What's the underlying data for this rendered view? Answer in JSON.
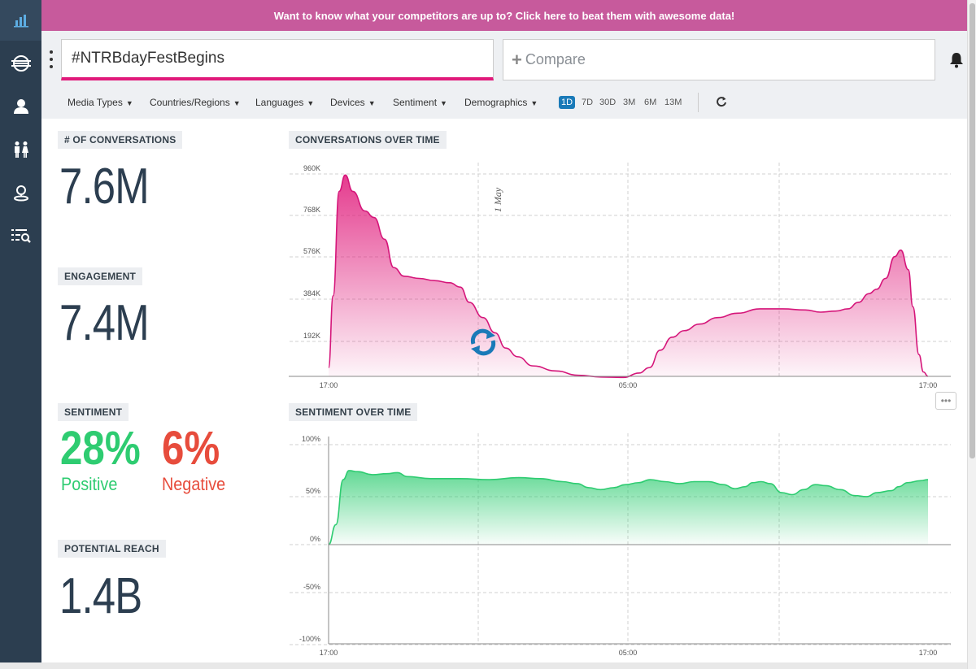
{
  "banner": {
    "text": "Want to know what your competitors are up to? Click here to beat them with awesome data!"
  },
  "sidebar": {
    "items": [
      {
        "icon": "bar-chart-icon",
        "active": true
      },
      {
        "icon": "globe-icon"
      },
      {
        "icon": "user-icon"
      },
      {
        "icon": "demographics-icon"
      },
      {
        "icon": "location-icon"
      },
      {
        "icon": "search-list-icon"
      }
    ]
  },
  "search": {
    "hashtag": "#NTRBdayFestBegins",
    "compare_label": "Compare"
  },
  "filters": {
    "media_types": "Media Types",
    "countries": "Countries/Regions",
    "languages": "Languages",
    "devices": "Devices",
    "sentiment": "Sentiment",
    "demographics": "Demographics"
  },
  "ranges": [
    "1D",
    "7D",
    "30D",
    "3M",
    "6M",
    "13M"
  ],
  "active_range": "1D",
  "metrics": {
    "conversations": {
      "title": "# OF CONVERSATIONS",
      "value": "7.6M"
    },
    "engagement": {
      "title": "ENGAGEMENT",
      "value": "7.4M"
    },
    "sentiment": {
      "title": "SENTIMENT",
      "positive": "28%",
      "positive_label": "Positive",
      "negative": "6%",
      "negative_label": "Negative"
    },
    "reach": {
      "title": "POTENTIAL REACH",
      "value": "1.4B"
    }
  },
  "colors": {
    "brand": "#e0197a",
    "positive": "#2ecc71",
    "negative": "#e74c3c",
    "accent": "#1a7ab8",
    "sidebar": "#2c3e50"
  },
  "chart_data": [
    {
      "type": "area",
      "title": "CONVERSATIONS OVER TIME",
      "x_ticks": [
        "17:00",
        "05:00",
        "17:00"
      ],
      "y_ticks": [
        "192K",
        "384K",
        "576K",
        "768K",
        "960K"
      ],
      "ylim": [
        0,
        960000
      ],
      "annotation": "1 May",
      "grid": true,
      "series": [
        {
          "values": [
            [
              0,
              70000
            ],
            [
              0.3,
              400000
            ],
            [
              0.7,
              880000
            ],
            [
              1.1,
              955000
            ],
            [
              1.6,
              880000
            ],
            [
              2.4,
              790000
            ],
            [
              3,
              760000
            ],
            [
              3.7,
              660000
            ],
            [
              4.3,
              530000
            ],
            [
              5,
              490000
            ],
            [
              6,
              480000
            ],
            [
              7,
              470000
            ],
            [
              8,
              460000
            ],
            [
              8.7,
              440000
            ],
            [
              9.3,
              370000
            ],
            [
              10.2,
              300000
            ],
            [
              11,
              230000
            ],
            [
              11.7,
              160000
            ],
            [
              12.5,
              120000
            ],
            [
              13.5,
              78000
            ],
            [
              15,
              55000
            ],
            [
              16.5,
              35000
            ],
            [
              18,
              27000
            ],
            [
              19.5,
              25000
            ],
            [
              20.5,
              45000
            ],
            [
              21.2,
              70000
            ],
            [
              21.9,
              150000
            ],
            [
              22.7,
              210000
            ],
            [
              23.5,
              240000
            ],
            [
              24.5,
              270000
            ],
            [
              25.7,
              300000
            ],
            [
              27,
              320000
            ],
            [
              28.5,
              340000
            ],
            [
              30,
              340000
            ],
            [
              31.5,
              335000
            ],
            [
              32.5,
              325000
            ],
            [
              33.5,
              330000
            ],
            [
              34.3,
              340000
            ],
            [
              35,
              370000
            ],
            [
              35.7,
              410000
            ],
            [
              36.2,
              430000
            ],
            [
              36.8,
              480000
            ],
            [
              37.4,
              580000
            ],
            [
              37.8,
              610000
            ],
            [
              38.3,
              520000
            ],
            [
              38.6,
              350000
            ],
            [
              39,
              130000
            ],
            [
              39.3,
              50000
            ],
            [
              39.6,
              30000
            ]
          ]
        }
      ]
    },
    {
      "type": "area",
      "title": "SENTIMENT OVER TIME",
      "x_ticks": [
        "17:00",
        "05:00",
        "17:00"
      ],
      "y_ticks": [
        "100%",
        "50%",
        "0%",
        "-50%",
        "-100%"
      ],
      "ylim": [
        -100,
        100
      ],
      "grid": true,
      "series": [
        {
          "values": [
            [
              0,
              0
            ],
            [
              0.5,
              20
            ],
            [
              1,
              65
            ],
            [
              1.4,
              74
            ],
            [
              2,
              73
            ],
            [
              3,
              70
            ],
            [
              4,
              71
            ],
            [
              4.7,
              72
            ],
            [
              5.4,
              68
            ],
            [
              7,
              66
            ],
            [
              9,
              66
            ],
            [
              11,
              65
            ],
            [
              13,
              67
            ],
            [
              14.5,
              66
            ],
            [
              16,
              63
            ],
            [
              17,
              61
            ],
            [
              17.8,
              57
            ],
            [
              18.6,
              55
            ],
            [
              19.5,
              57
            ],
            [
              20.3,
              60
            ],
            [
              21.2,
              62
            ],
            [
              22,
              65
            ],
            [
              23,
              63
            ],
            [
              24,
              61
            ],
            [
              25,
              63
            ],
            [
              26,
              63
            ],
            [
              27,
              60
            ],
            [
              27.8,
              56
            ],
            [
              28.5,
              58
            ],
            [
              29,
              62
            ],
            [
              29.6,
              63
            ],
            [
              30.2,
              61
            ],
            [
              31,
              52
            ],
            [
              31.7,
              50
            ],
            [
              32.5,
              55
            ],
            [
              33.3,
              60
            ],
            [
              34,
              59
            ],
            [
              35,
              55
            ],
            [
              36,
              49
            ],
            [
              36.8,
              48
            ],
            [
              37.5,
              52
            ],
            [
              38.5,
              54
            ],
            [
              39,
              58
            ],
            [
              39.6,
              62
            ],
            [
              40.5,
              64
            ],
            [
              41,
              65
            ]
          ]
        }
      ]
    }
  ]
}
